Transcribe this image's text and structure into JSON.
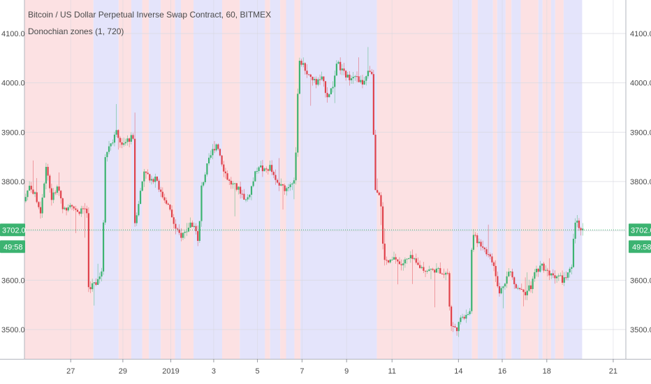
{
  "header": {
    "title": "Bitcoin / US Dollar Perpetual Inverse Swap Contract, 60, BITMEX",
    "indicator": "Donochian zones (1, 720)"
  },
  "price_badge": {
    "price": "3702.0",
    "countdown": "49:58",
    "color": "#3cb371"
  },
  "colors": {
    "up": "#3cb371",
    "down": "#e0424b",
    "zone_red": "#fce1e3",
    "zone_blue": "#e4e4fb"
  },
  "chart_data": {
    "type": "candlestick",
    "title": "Bitcoin / US Dollar Perpetual Inverse Swap Contract, 60, BITMEX",
    "indicator": "Donochian zones (1, 720)",
    "y_ticks": [
      3500.0,
      3600.0,
      3700.0,
      3800.0,
      3900.0,
      4000.0,
      4100.0
    ],
    "y_tick_labels": [
      "3500.0",
      "3600.0",
      "3700.0",
      "3800.0",
      "3900.0",
      "4000.0",
      "4100.0"
    ],
    "ylim": [
      3445,
      4180
    ],
    "x_ticks": [
      {
        "label": "27",
        "pos": 5.5
      },
      {
        "label": "29",
        "pos": 11.7
      },
      {
        "label": "2019",
        "pos": 17.4
      },
      {
        "label": "3",
        "pos": 22.5
      },
      {
        "label": "5",
        "pos": 27.7
      },
      {
        "label": "7",
        "pos": 33.0
      },
      {
        "label": "9",
        "pos": 38.3
      },
      {
        "label": "11",
        "pos": 43.7
      },
      {
        "label": "14",
        "pos": 51.6
      },
      {
        "label": "16",
        "pos": 56.8
      },
      {
        "label": "18",
        "pos": 62.1
      },
      {
        "label": "21",
        "pos": 70.0
      }
    ],
    "xlim": [
      0,
      71.5
    ],
    "last_price": 3702.0,
    "zones": [
      {
        "from": 0,
        "to": 8.2,
        "state": "red"
      },
      {
        "from": 8.2,
        "to": 11.2,
        "state": "blue"
      },
      {
        "from": 11.2,
        "to": 12.7,
        "state": "red"
      },
      {
        "from": 12.7,
        "to": 14.0,
        "state": "blue"
      },
      {
        "from": 14.0,
        "to": 14.8,
        "state": "red"
      },
      {
        "from": 14.8,
        "to": 16.2,
        "state": "blue"
      },
      {
        "from": 16.2,
        "to": 17.9,
        "state": "red"
      },
      {
        "from": 17.9,
        "to": 18.6,
        "state": "blue"
      },
      {
        "from": 18.6,
        "to": 20.1,
        "state": "red"
      },
      {
        "from": 20.1,
        "to": 23.5,
        "state": "blue"
      },
      {
        "from": 23.5,
        "to": 25.6,
        "state": "red"
      },
      {
        "from": 25.6,
        "to": 28.6,
        "state": "blue"
      },
      {
        "from": 28.6,
        "to": 29.2,
        "state": "red"
      },
      {
        "from": 29.2,
        "to": 30.4,
        "state": "blue"
      },
      {
        "from": 30.4,
        "to": 31.1,
        "state": "red"
      },
      {
        "from": 31.1,
        "to": 32.1,
        "state": "blue"
      },
      {
        "from": 32.1,
        "to": 32.8,
        "state": "red"
      },
      {
        "from": 32.8,
        "to": 41.9,
        "state": "blue"
      },
      {
        "from": 41.9,
        "to": 50.9,
        "state": "red"
      },
      {
        "from": 50.9,
        "to": 53.2,
        "state": "blue"
      },
      {
        "from": 53.2,
        "to": 53.9,
        "state": "red"
      },
      {
        "from": 53.9,
        "to": 55.7,
        "state": "blue"
      },
      {
        "from": 55.7,
        "to": 56.2,
        "state": "red"
      },
      {
        "from": 56.2,
        "to": 57.2,
        "state": "blue"
      },
      {
        "from": 57.2,
        "to": 57.9,
        "state": "red"
      },
      {
        "from": 57.9,
        "to": 59.0,
        "state": "blue"
      },
      {
        "from": 59.0,
        "to": 61.1,
        "state": "red"
      },
      {
        "from": 61.1,
        "to": 61.6,
        "state": "blue"
      },
      {
        "from": 61.6,
        "to": 62.6,
        "state": "red"
      },
      {
        "from": 62.6,
        "to": 63.1,
        "state": "blue"
      },
      {
        "from": 63.1,
        "to": 64.1,
        "state": "red"
      },
      {
        "from": 64.1,
        "to": 66.3,
        "state": "blue"
      }
    ],
    "price_path": [
      [
        0,
        3760
      ],
      [
        0.6,
        3795
      ],
      [
        1.3,
        3770
      ],
      [
        1.9,
        3740
      ],
      [
        2.6,
        3835
      ],
      [
        3.2,
        3765
      ],
      [
        4.0,
        3790
      ],
      [
        4.7,
        3740
      ],
      [
        5.5,
        3760
      ],
      [
        6.2,
        3735
      ],
      [
        6.8,
        3745
      ],
      [
        7.4,
        3745
      ],
      [
        7.6,
        3585
      ],
      [
        8.5,
        3595
      ],
      [
        8.9,
        3612
      ],
      [
        9.3,
        3612
      ],
      [
        9.5,
        3850
      ],
      [
        10.3,
        3880
      ],
      [
        11.0,
        3900
      ],
      [
        11.6,
        3870
      ],
      [
        12.3,
        3885
      ],
      [
        12.9,
        3890
      ],
      [
        13.1,
        3715
      ],
      [
        13.7,
        3770
      ],
      [
        14.3,
        3830
      ],
      [
        15.0,
        3795
      ],
      [
        15.6,
        3815
      ],
      [
        16.2,
        3775
      ],
      [
        16.9,
        3760
      ],
      [
        17.5,
        3730
      ],
      [
        18.0,
        3700
      ],
      [
        18.6,
        3690
      ],
      [
        19.2,
        3700
      ],
      [
        19.8,
        3715
      ],
      [
        20.4,
        3705
      ],
      [
        20.7,
        3665
      ],
      [
        21.0,
        3785
      ],
      [
        21.7,
        3830
      ],
      [
        22.3,
        3860
      ],
      [
        22.9,
        3880
      ],
      [
        23.6,
        3830
      ],
      [
        24.3,
        3800
      ],
      [
        25.0,
        3790
      ],
      [
        25.7,
        3780
      ],
      [
        26.4,
        3760
      ],
      [
        27.0,
        3790
      ],
      [
        27.8,
        3835
      ],
      [
        28.5,
        3820
      ],
      [
        29.2,
        3830
      ],
      [
        29.8,
        3800
      ],
      [
        30.5,
        3790
      ],
      [
        31.1,
        3785
      ],
      [
        31.7,
        3800
      ],
      [
        32.2,
        3810
      ],
      [
        32.6,
        4050
      ],
      [
        33.3,
        4030
      ],
      [
        34.0,
        4010
      ],
      [
        34.7,
        4000
      ],
      [
        35.3,
        4010
      ],
      [
        36.0,
        3975
      ],
      [
        36.6,
        3990
      ],
      [
        37.2,
        4040
      ],
      [
        37.9,
        4020
      ],
      [
        38.5,
        4010
      ],
      [
        39.2,
        4020
      ],
      [
        39.8,
        4000
      ],
      [
        40.4,
        4000
      ],
      [
        41.0,
        4025
      ],
      [
        41.4,
        4020
      ],
      [
        41.6,
        3790
      ],
      [
        42.3,
        3775
      ],
      [
        42.7,
        3640
      ],
      [
        43.4,
        3635
      ],
      [
        44.1,
        3645
      ],
      [
        44.7,
        3630
      ],
      [
        45.4,
        3640
      ],
      [
        46.0,
        3645
      ],
      [
        46.7,
        3630
      ],
      [
        47.3,
        3625
      ],
      [
        48.0,
        3620
      ],
      [
        48.6,
        3620
      ],
      [
        49.3,
        3620
      ],
      [
        49.9,
        3615
      ],
      [
        50.4,
        3615
      ],
      [
        50.6,
        3510
      ],
      [
        51.3,
        3500
      ],
      [
        51.9,
        3520
      ],
      [
        52.6,
        3535
      ],
      [
        53.0,
        3535
      ],
      [
        53.2,
        3690
      ],
      [
        53.9,
        3680
      ],
      [
        54.5,
        3670
      ],
      [
        55.2,
        3650
      ],
      [
        55.8,
        3630
      ],
      [
        56.4,
        3570
      ],
      [
        57.0,
        3595
      ],
      [
        57.7,
        3620
      ],
      [
        58.3,
        3590
      ],
      [
        59.0,
        3585
      ],
      [
        59.6,
        3575
      ],
      [
        60.3,
        3590
      ],
      [
        60.8,
        3620
      ],
      [
        61.5,
        3630
      ],
      [
        62.1,
        3620
      ],
      [
        62.8,
        3610
      ],
      [
        63.4,
        3610
      ],
      [
        64.0,
        3600
      ],
      [
        64.6,
        3610
      ],
      [
        65.1,
        3625
      ],
      [
        65.4,
        3720
      ],
      [
        66.0,
        3710
      ],
      [
        66.5,
        3702
      ]
    ]
  }
}
